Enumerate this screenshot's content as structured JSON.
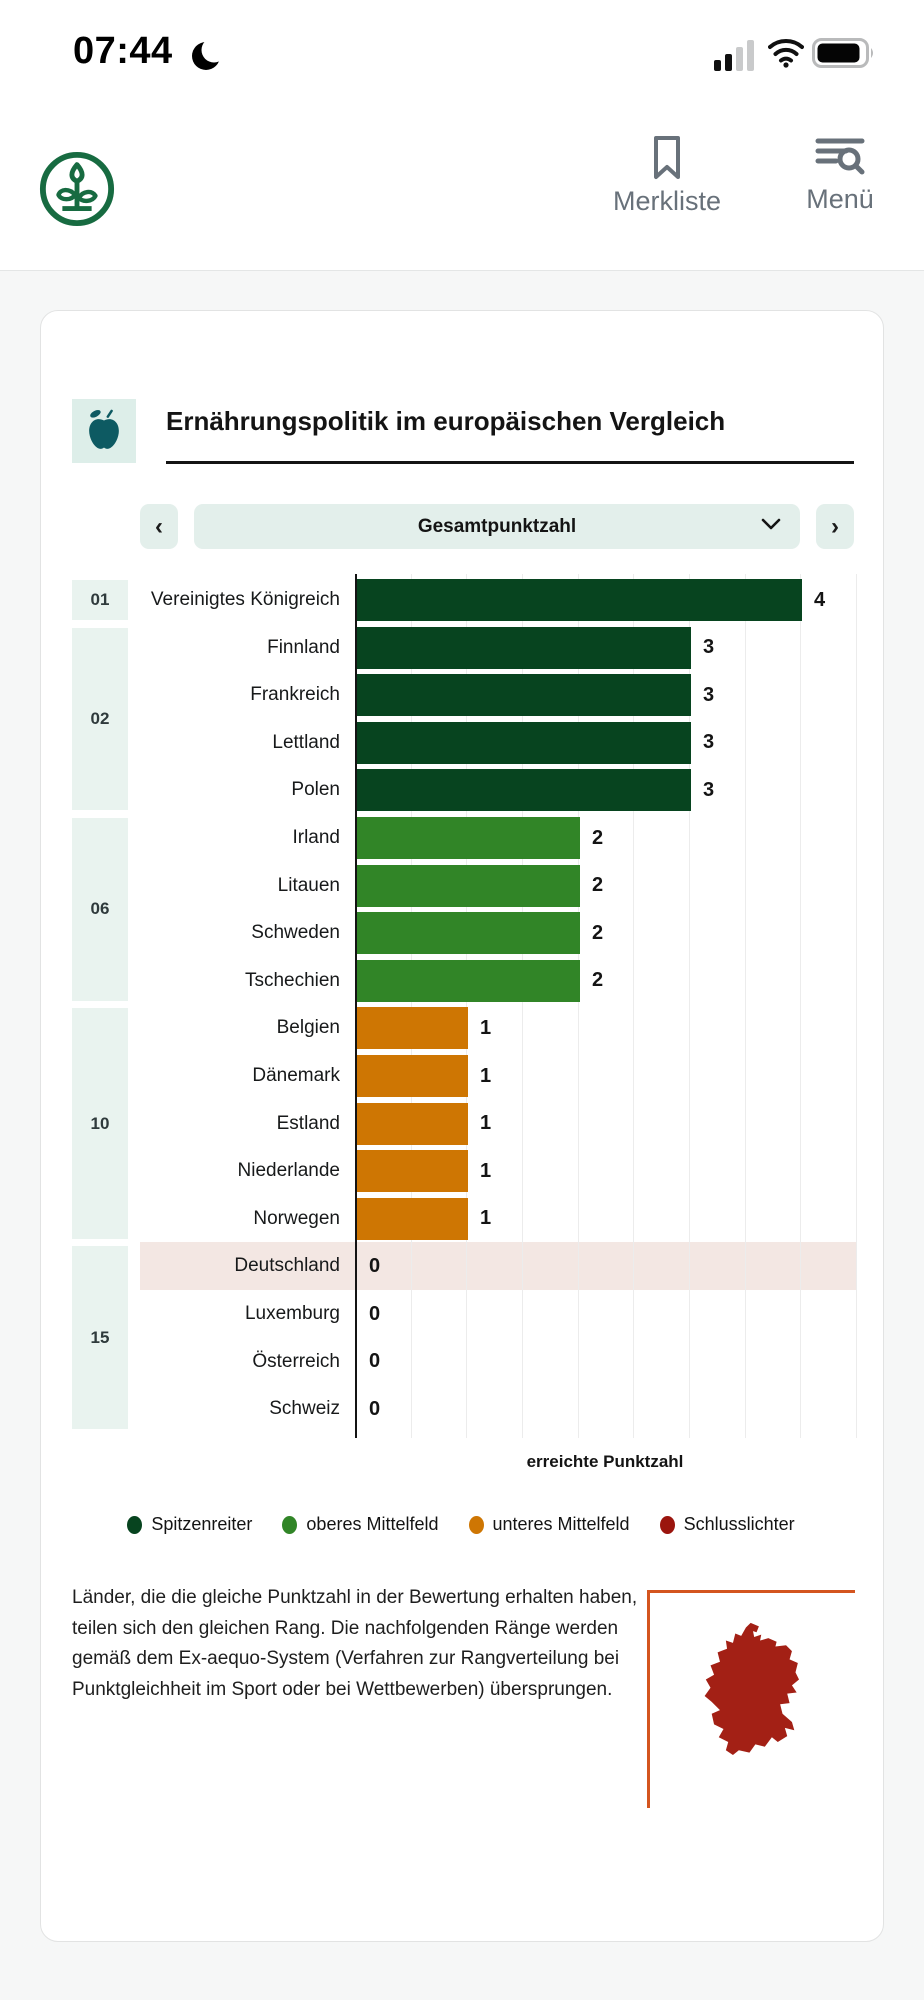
{
  "status_bar": {
    "time": "07:44"
  },
  "header": {
    "merkliste_label": "Merkliste",
    "menu_label": "Menü"
  },
  "card": {
    "title": "Ernährungspolitik im europäischen Vergleich",
    "selector": {
      "prev_glyph": "‹",
      "label": "Gesamtpunktzahl",
      "next_glyph": "›"
    },
    "note": "Länder, die die gleiche Punktzahl in der Bewertung erhalten haben, teilen sich den gleichen Rang. Die nachfolgenden Ränge werden gemäß dem Ex-aequo-System (Verfahren zur Rangverteilung bei Punktgleichheit im Sport oder bei Wettbewerben) übersprungen."
  },
  "chart_data": {
    "type": "bar",
    "orientation": "horizontal",
    "title": "Ernährungspolitik im europäischen Vergleich",
    "xlabel": "erreichte Punktzahl",
    "xlim": [
      0,
      4.5
    ],
    "grid": true,
    "categories": [
      "Vereinigtes Königreich",
      "Finnland",
      "Frankreich",
      "Lettland",
      "Polen",
      "Irland",
      "Litauen",
      "Schweden",
      "Tschechien",
      "Belgien",
      "Dänemark",
      "Estland",
      "Niederlande",
      "Norwegen",
      "Deutschland",
      "Luxemburg",
      "Österreich",
      "Schweiz"
    ],
    "values": [
      4,
      3,
      3,
      3,
      3,
      2,
      2,
      2,
      2,
      1,
      1,
      1,
      1,
      1,
      0,
      0,
      0,
      0
    ],
    "rows": [
      {
        "rank": "01",
        "country": "Vereinigtes Königreich",
        "value": 4,
        "tier": "spitzenreiter",
        "highlight": false
      },
      {
        "rank": "02",
        "country": "Finnland",
        "value": 3,
        "tier": "spitzenreiter",
        "highlight": false
      },
      {
        "rank": "",
        "country": "Frankreich",
        "value": 3,
        "tier": "spitzenreiter",
        "highlight": false
      },
      {
        "rank": "",
        "country": "Lettland",
        "value": 3,
        "tier": "spitzenreiter",
        "highlight": false
      },
      {
        "rank": "",
        "country": "Polen",
        "value": 3,
        "tier": "spitzenreiter",
        "highlight": false
      },
      {
        "rank": "06",
        "country": "Irland",
        "value": 2,
        "tier": "oberes_mittelfeld",
        "highlight": false
      },
      {
        "rank": "",
        "country": "Litauen",
        "value": 2,
        "tier": "oberes_mittelfeld",
        "highlight": false
      },
      {
        "rank": "",
        "country": "Schweden",
        "value": 2,
        "tier": "oberes_mittelfeld",
        "highlight": false
      },
      {
        "rank": "",
        "country": "Tschechien",
        "value": 2,
        "tier": "oberes_mittelfeld",
        "highlight": false
      },
      {
        "rank": "10",
        "country": "Belgien",
        "value": 1,
        "tier": "unteres_mittelfeld",
        "highlight": false
      },
      {
        "rank": "",
        "country": "Dänemark",
        "value": 1,
        "tier": "unteres_mittelfeld",
        "highlight": false
      },
      {
        "rank": "",
        "country": "Estland",
        "value": 1,
        "tier": "unteres_mittelfeld",
        "highlight": false
      },
      {
        "rank": "",
        "country": "Niederlande",
        "value": 1,
        "tier": "unteres_mittelfeld",
        "highlight": false
      },
      {
        "rank": "",
        "country": "Norwegen",
        "value": 1,
        "tier": "unteres_mittelfeld",
        "highlight": false
      },
      {
        "rank": "15",
        "country": "Deutschland",
        "value": 0,
        "tier": "schlusslichter",
        "highlight": true
      },
      {
        "rank": "",
        "country": "Luxemburg",
        "value": 0,
        "tier": "schlusslichter",
        "highlight": false
      },
      {
        "rank": "",
        "country": "Österreich",
        "value": 0,
        "tier": "schlusslichter",
        "highlight": false
      },
      {
        "rank": "",
        "country": "Schweiz",
        "value": 0,
        "tier": "schlusslichter",
        "highlight": false
      }
    ],
    "rank_groups": [
      {
        "label": "01",
        "start": 0,
        "count": 1
      },
      {
        "label": "02",
        "start": 1,
        "count": 4
      },
      {
        "label": "06",
        "start": 5,
        "count": 4
      },
      {
        "label": "10",
        "start": 9,
        "count": 5
      },
      {
        "label": "15",
        "start": 14,
        "count": 4
      }
    ],
    "tier_colors": {
      "spitzenreiter": "#07441f",
      "oberes_mittelfeld": "#318527",
      "unteres_mittelfeld": "#ce7603",
      "schlusslichter": "#9b150e"
    },
    "legend": [
      {
        "label": "Spitzenreiter",
        "color": "#07441f"
      },
      {
        "label": "oberes Mittelfeld",
        "color": "#318527"
      },
      {
        "label": "unteres Mittelfeld",
        "color": "#ce7603"
      },
      {
        "label": "Schlusslichter",
        "color": "#9b150e"
      }
    ],
    "highlight_row_color": "#f3e7e3",
    "highlighted_country": "Deutschland"
  }
}
